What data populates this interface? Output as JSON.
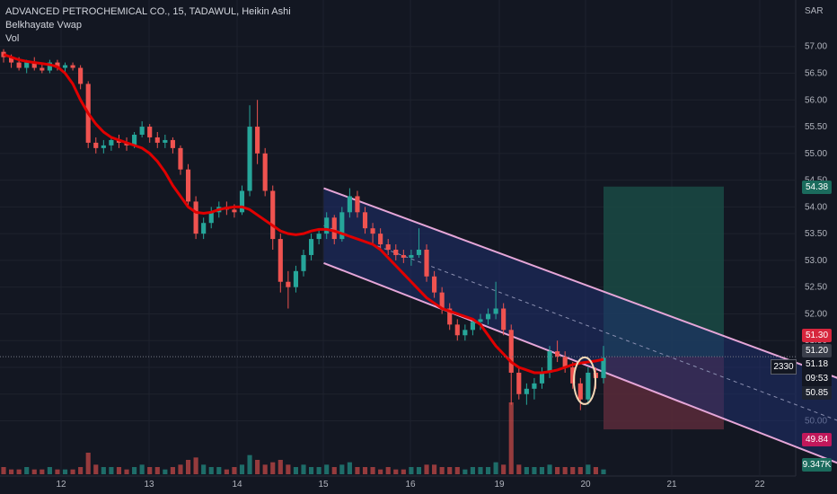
{
  "header": {
    "title": "ADVANCED PETROCHEMICAL CO., 15, TADAWUL, Heikin Ashi",
    "indicator": "Belkhayate Vwap",
    "volume_label": "Vol"
  },
  "currency": "SAR",
  "colors": {
    "background": "#131722",
    "grid": "#1e222d",
    "up": "#26a69a",
    "down": "#ef5350",
    "vwap": "#e00000",
    "channel_border": "#e5a6d8",
    "channel_fill": "#1f2f6e",
    "target_fill": "#1a4a44",
    "stop_fill": "#5a2a3a"
  },
  "price_labels": {
    "target": "54.38",
    "level_51_30": "51.30",
    "current": "51.20",
    "current_price": "51.18",
    "countdown": "09:53",
    "level_50_85": "50.85",
    "stop": "49.84",
    "volume": "9.347K",
    "symbol_tag": "2330"
  },
  "chart_data": {
    "type": "candlestick",
    "title": "ADVANCED PETROCHEMICAL CO., 15, TADAWUL, Heikin Ashi",
    "y_axis": {
      "unit": "SAR",
      "range": [
        48.8,
        57.6
      ],
      "ticks": [
        "57.00",
        "56.50",
        "56.00",
        "55.50",
        "55.00",
        "54.50",
        "54.00",
        "53.50",
        "53.00",
        "52.50",
        "52.00",
        "51.50",
        "51.00",
        "50.50",
        "50.00"
      ]
    },
    "x_axis": {
      "ticks": [
        "12",
        "13",
        "14",
        "15",
        "16",
        "19",
        "20",
        "21",
        "22"
      ]
    },
    "candles_ohlc": [
      [
        56.9,
        56.95,
        56.7,
        56.8
      ],
      [
        56.8,
        56.85,
        56.6,
        56.7
      ],
      [
        56.7,
        56.8,
        56.55,
        56.6
      ],
      [
        56.6,
        56.75,
        56.5,
        56.7
      ],
      [
        56.7,
        56.8,
        56.55,
        56.6
      ],
      [
        56.6,
        56.7,
        56.5,
        56.55
      ],
      [
        56.55,
        56.75,
        56.5,
        56.7
      ],
      [
        56.7,
        56.75,
        56.55,
        56.6
      ],
      [
        56.6,
        56.7,
        56.5,
        56.65
      ],
      [
        56.65,
        56.7,
        56.55,
        56.6
      ],
      [
        56.6,
        56.65,
        56.2,
        56.3
      ],
      [
        56.3,
        56.35,
        55.1,
        55.2
      ],
      [
        55.2,
        55.3,
        55.0,
        55.1
      ],
      [
        55.1,
        55.25,
        55.0,
        55.15
      ],
      [
        55.15,
        55.3,
        55.05,
        55.25
      ],
      [
        55.25,
        55.35,
        55.1,
        55.2
      ],
      [
        55.2,
        55.3,
        55.05,
        55.15
      ],
      [
        55.15,
        55.4,
        55.1,
        55.35
      ],
      [
        55.35,
        55.6,
        55.3,
        55.5
      ],
      [
        55.5,
        55.55,
        55.2,
        55.3
      ],
      [
        55.3,
        55.4,
        55.1,
        55.2
      ],
      [
        55.2,
        55.35,
        55.1,
        55.25
      ],
      [
        55.25,
        55.3,
        55.0,
        55.1
      ],
      [
        55.1,
        55.15,
        54.6,
        54.7
      ],
      [
        54.7,
        54.8,
        54.0,
        54.1
      ],
      [
        54.1,
        54.2,
        53.4,
        53.5
      ],
      [
        53.5,
        53.8,
        53.4,
        53.7
      ],
      [
        53.7,
        54.0,
        53.6,
        53.9
      ],
      [
        53.9,
        54.1,
        53.8,
        54.0
      ],
      [
        54.0,
        54.1,
        53.85,
        53.95
      ],
      [
        53.95,
        54.05,
        53.8,
        53.9
      ],
      [
        53.9,
        54.4,
        53.85,
        54.3
      ],
      [
        54.3,
        55.9,
        54.2,
        55.5
      ],
      [
        55.5,
        56.0,
        54.8,
        55.0
      ],
      [
        55.0,
        55.1,
        54.2,
        54.3
      ],
      [
        54.3,
        54.4,
        53.2,
        53.4
      ],
      [
        53.4,
        53.5,
        52.4,
        52.6
      ],
      [
        52.6,
        52.8,
        52.1,
        52.5
      ],
      [
        52.5,
        52.9,
        52.4,
        52.8
      ],
      [
        52.8,
        53.2,
        52.7,
        53.1
      ],
      [
        53.1,
        53.5,
        53.0,
        53.4
      ],
      [
        53.4,
        53.6,
        53.3,
        53.5
      ],
      [
        53.5,
        53.9,
        53.4,
        53.8
      ],
      [
        53.8,
        53.85,
        53.3,
        53.4
      ],
      [
        53.4,
        54.0,
        53.35,
        53.9
      ],
      [
        53.9,
        54.35,
        53.8,
        54.2
      ],
      [
        54.2,
        54.3,
        53.8,
        53.9
      ],
      [
        53.9,
        54.0,
        53.5,
        53.6
      ],
      [
        53.6,
        53.7,
        53.3,
        53.5
      ],
      [
        53.5,
        53.6,
        53.2,
        53.3
      ],
      [
        53.3,
        53.4,
        53.1,
        53.2
      ],
      [
        53.2,
        53.3,
        53.0,
        53.1
      ],
      [
        53.1,
        53.2,
        52.95,
        53.05
      ],
      [
        53.05,
        53.2,
        52.9,
        53.1
      ],
      [
        53.1,
        53.6,
        53.05,
        53.2
      ],
      [
        53.2,
        53.3,
        52.6,
        52.7
      ],
      [
        52.7,
        52.8,
        52.3,
        52.4
      ],
      [
        52.4,
        52.5,
        52.0,
        52.1
      ],
      [
        52.1,
        52.2,
        51.7,
        51.8
      ],
      [
        51.8,
        51.9,
        51.5,
        51.6
      ],
      [
        51.6,
        51.8,
        51.5,
        51.7
      ],
      [
        51.7,
        51.9,
        51.6,
        51.85
      ],
      [
        51.85,
        52.0,
        51.7,
        51.9
      ],
      [
        51.9,
        52.1,
        51.8,
        52.0
      ],
      [
        52.0,
        52.6,
        51.9,
        52.1
      ],
      [
        52.1,
        52.2,
        51.6,
        51.7
      ],
      [
        51.7,
        51.8,
        50.3,
        50.9
      ],
      [
        50.9,
        51.0,
        50.4,
        50.5
      ],
      [
        50.5,
        50.7,
        50.3,
        50.6
      ],
      [
        50.6,
        50.8,
        50.4,
        50.7
      ],
      [
        50.7,
        51.0,
        50.6,
        50.9
      ],
      [
        50.9,
        51.4,
        50.8,
        51.3
      ],
      [
        51.3,
        51.5,
        51.1,
        51.2
      ],
      [
        51.2,
        51.3,
        50.9,
        51.0
      ],
      [
        51.0,
        51.1,
        50.6,
        50.7
      ],
      [
        50.7,
        50.8,
        50.2,
        50.4
      ],
      [
        50.4,
        51.0,
        50.3,
        50.9
      ],
      [
        50.9,
        51.0,
        50.6,
        50.8
      ],
      [
        50.8,
        51.4,
        50.7,
        51.18
      ]
    ],
    "volume": [
      3,
      2,
      2,
      3,
      2,
      2,
      3,
      2,
      2,
      2,
      3,
      9,
      4,
      3,
      3,
      3,
      2,
      3,
      4,
      3,
      3,
      2,
      3,
      4,
      6,
      7,
      4,
      3,
      3,
      2,
      3,
      4,
      8,
      6,
      4,
      5,
      6,
      4,
      3,
      4,
      3,
      3,
      4,
      3,
      4,
      5,
      3,
      3,
      3,
      2,
      3,
      2,
      2,
      3,
      3,
      4,
      4,
      3,
      3,
      3,
      2,
      3,
      3,
      3,
      5,
      4,
      30,
      4,
      3,
      3,
      3,
      4,
      3,
      3,
      3,
      3,
      4,
      3,
      2
    ],
    "vwap": [
      56.85,
      56.8,
      56.75,
      56.72,
      56.7,
      56.68,
      56.66,
      56.62,
      56.5,
      56.3,
      56.0,
      55.75,
      55.55,
      55.4,
      55.3,
      55.25,
      55.2,
      55.15,
      55.1,
      55.0,
      54.85,
      54.65,
      54.4,
      54.2,
      54.0,
      53.9,
      53.88,
      53.9,
      53.95,
      53.98,
      54.0,
      54.0,
      53.95,
      53.85,
      53.75,
      53.65,
      53.55,
      53.5,
      53.48,
      53.5,
      53.55,
      53.58,
      53.58,
      53.55,
      53.5,
      53.45,
      53.4,
      53.35,
      53.3,
      53.2,
      53.05,
      52.9,
      52.75,
      52.6,
      52.45,
      52.3,
      52.2,
      52.1,
      52.05,
      52.0,
      51.95,
      51.9,
      51.8,
      51.6,
      51.4,
      51.25,
      51.1,
      51.0,
      50.95,
      50.9,
      50.9,
      50.92,
      50.95,
      51.0,
      51.05,
      51.08,
      51.1,
      51.12,
      51.15
    ],
    "channel": {
      "upper": [
        [
          15,
          54.35
        ],
        [
          21.2,
          50.6
        ]
      ],
      "lower": [
        [
          15,
          52.95
        ],
        [
          21.2,
          49.0
        ]
      ]
    },
    "position": {
      "entry": 51.2,
      "target": 54.38,
      "stop": 49.84
    }
  }
}
